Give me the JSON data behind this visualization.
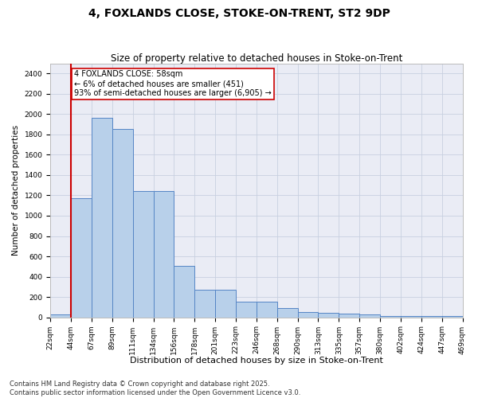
{
  "title_line1": "4, FOXLANDS CLOSE, STOKE-ON-TRENT, ST2 9DP",
  "title_line2": "Size of property relative to detached houses in Stoke-on-Trent",
  "xlabel": "Distribution of detached houses by size in Stoke-on-Trent",
  "ylabel": "Number of detached properties",
  "bar_values": [
    25,
    1175,
    1960,
    1855,
    1240,
    1240,
    510,
    270,
    270,
    155,
    155,
    90,
    50,
    45,
    40,
    25,
    15,
    15,
    10,
    10
  ],
  "bar_labels": [
    "22sqm",
    "44sqm",
    "67sqm",
    "89sqm",
    "111sqm",
    "134sqm",
    "156sqm",
    "178sqm",
    "201sqm",
    "223sqm",
    "246sqm",
    "268sqm",
    "290sqm",
    "313sqm",
    "335sqm",
    "357sqm",
    "380sqm",
    "402sqm",
    "424sqm",
    "447sqm",
    "469sqm"
  ],
  "bar_color": "#b8d0ea",
  "bar_edge_color": "#5585c5",
  "vline_color": "#cc0000",
  "annotation_text": "4 FOXLANDS CLOSE: 58sqm\n← 6% of detached houses are smaller (451)\n93% of semi-detached houses are larger (6,905) →",
  "annotation_box_color": "#cc0000",
  "ylim_max": 2500,
  "yticks": [
    0,
    200,
    400,
    600,
    800,
    1000,
    1200,
    1400,
    1600,
    1800,
    2000,
    2200,
    2400
  ],
  "grid_color": "#c8d0e0",
  "bg_color": "#eaecf5",
  "footer_line1": "Contains HM Land Registry data © Crown copyright and database right 2025.",
  "footer_line2": "Contains public sector information licensed under the Open Government Licence v3.0.",
  "title_fontsize": 10,
  "subtitle_fontsize": 8.5,
  "xlabel_fontsize": 8,
  "ylabel_fontsize": 7.5,
  "tick_fontsize": 6.5,
  "footer_fontsize": 6,
  "annot_fontsize": 7
}
